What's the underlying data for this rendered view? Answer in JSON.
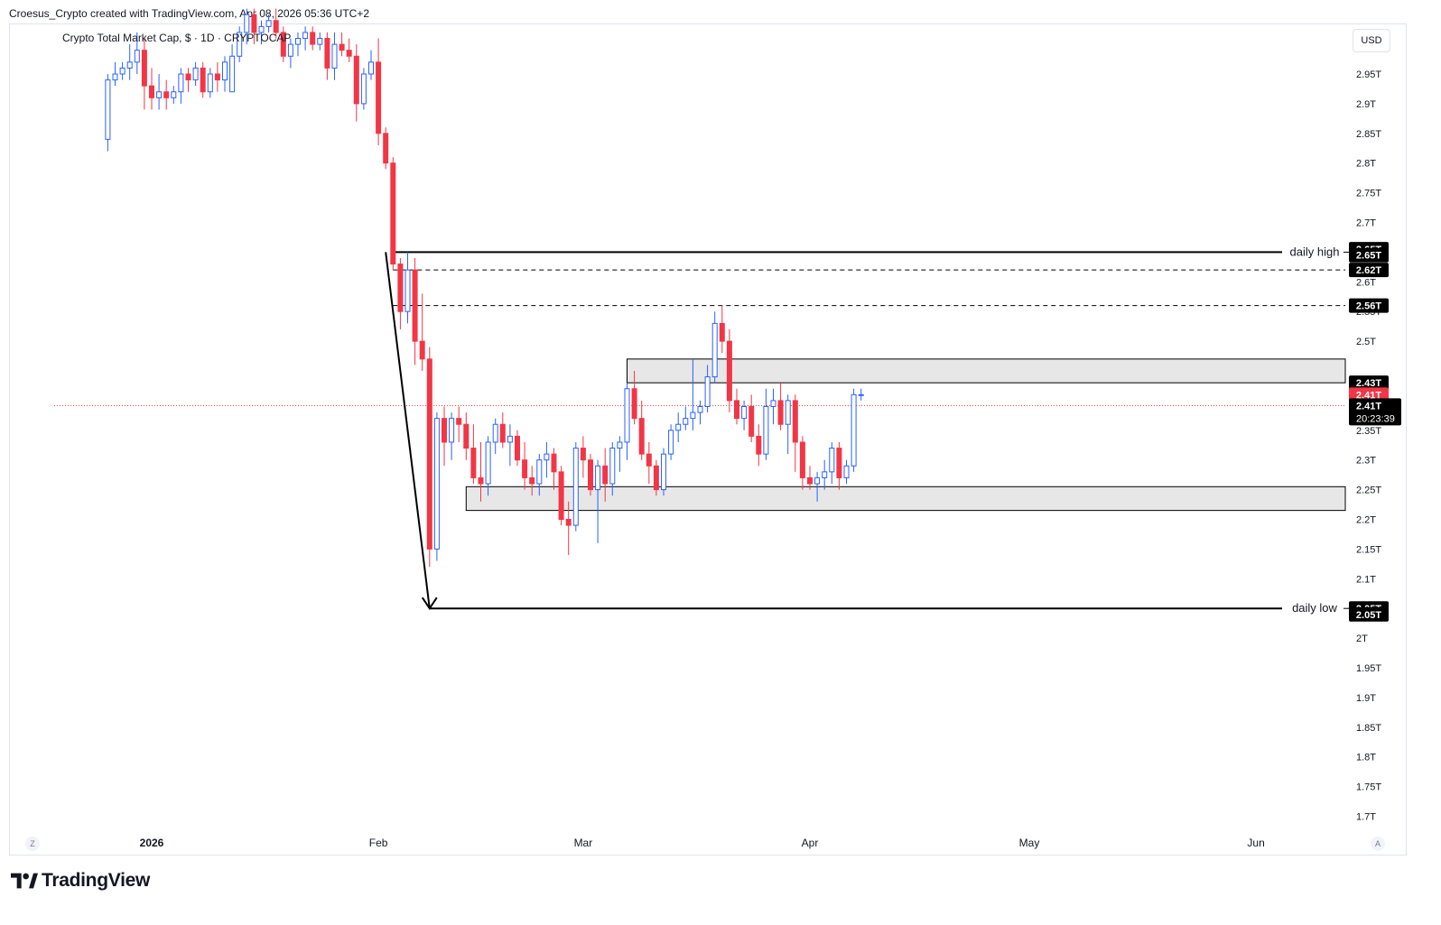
{
  "header": {
    "attribution": "Croesus_Crypto created with TradingView.com, Apr 08, 2026 05:36 UTC+2"
  },
  "symbol": {
    "title": "Crypto Total Market Cap, $ · 1D · CRYPTOCAP"
  },
  "currency": "USD",
  "corner_left": "Z",
  "corner_right": "A",
  "footer": {
    "brand": "TradingView"
  },
  "colors": {
    "up": "#2962ff",
    "down": "#f23645",
    "zone": "#e3e3e3",
    "line": "#000000",
    "price_line": "#f23645"
  },
  "chart_data": {
    "type": "candlestick",
    "y_axis": {
      "ticks": [
        "2.95T",
        "2.9T",
        "2.85T",
        "2.8T",
        "2.75T",
        "2.7T",
        "2.6T",
        "2.55T",
        "2.5T",
        "2.35T",
        "2.3T",
        "2.25T",
        "2.2T",
        "2.15T",
        "2.1T",
        "2T",
        "1.95T",
        "1.9T",
        "1.85T",
        "1.8T",
        "1.75T",
        "1.7T"
      ],
      "tick_values": [
        2.95,
        2.9,
        2.85,
        2.8,
        2.75,
        2.7,
        2.6,
        2.55,
        2.5,
        2.35,
        2.3,
        2.25,
        2.2,
        2.15,
        2.1,
        2.0,
        1.95,
        1.9,
        1.85,
        1.8,
        1.75,
        1.7
      ],
      "range": [
        1.68,
        3.0
      ]
    },
    "x_axis": {
      "labels": [
        "2026",
        "Feb",
        "Mar",
        "Apr",
        "May",
        "Jun"
      ],
      "dates": [
        "2026-01-01",
        "2026-02-01",
        "2026-03-01",
        "2026-04-01",
        "2026-05-01",
        "2026-06-01"
      ]
    },
    "candles": [
      [
        "2025-12-26",
        2.84,
        2.95,
        2.82,
        2.94
      ],
      [
        "2025-12-27",
        2.94,
        2.97,
        2.93,
        2.95
      ],
      [
        "2025-12-28",
        2.95,
        2.97,
        2.94,
        2.96
      ],
      [
        "2025-12-29",
        2.96,
        3.0,
        2.94,
        2.97
      ],
      [
        "2025-12-30",
        2.97,
        3.02,
        2.95,
        2.99
      ],
      [
        "2025-12-31",
        2.99,
        3.01,
        2.89,
        2.93
      ],
      [
        "2026-01-01",
        2.93,
        2.96,
        2.89,
        2.91
      ],
      [
        "2026-01-02",
        2.91,
        2.95,
        2.89,
        2.92
      ],
      [
        "2026-01-03",
        2.92,
        2.94,
        2.89,
        2.91
      ],
      [
        "2026-01-04",
        2.91,
        2.93,
        2.9,
        2.92
      ],
      [
        "2026-01-05",
        2.92,
        2.96,
        2.9,
        2.95
      ],
      [
        "2026-01-06",
        2.95,
        2.96,
        2.92,
        2.94
      ],
      [
        "2026-01-07",
        2.94,
        2.97,
        2.93,
        2.96
      ],
      [
        "2026-01-08",
        2.96,
        2.97,
        2.91,
        2.92
      ],
      [
        "2026-01-09",
        2.92,
        2.96,
        2.91,
        2.95
      ],
      [
        "2026-01-10",
        2.95,
        2.97,
        2.92,
        2.94
      ],
      [
        "2026-01-11",
        2.94,
        2.98,
        2.92,
        2.97
      ],
      [
        "2026-01-12",
        2.92,
        3.0,
        2.92,
        2.98
      ],
      [
        "2026-01-13",
        2.98,
        3.03,
        2.97,
        3.02
      ],
      [
        "2026-01-14",
        3.02,
        3.06,
        3.0,
        3.05
      ],
      [
        "2026-01-15",
        3.05,
        3.06,
        3.0,
        3.02
      ],
      [
        "2026-01-16",
        3.02,
        3.04,
        3.0,
        3.03
      ],
      [
        "2026-01-17",
        3.03,
        3.05,
        3.02,
        3.04
      ],
      [
        "2026-01-18",
        3.04,
        3.06,
        3.01,
        3.02
      ],
      [
        "2026-01-19",
        3.02,
        3.03,
        2.97,
        2.98
      ],
      [
        "2026-01-20",
        2.98,
        3.01,
        2.96,
        3.0
      ],
      [
        "2026-01-21",
        3.0,
        3.02,
        2.98,
        3.01
      ],
      [
        "2026-01-22",
        3.01,
        3.03,
        2.99,
        3.02
      ],
      [
        "2026-01-23",
        3.02,
        3.03,
        2.99,
        3.0
      ],
      [
        "2026-01-24",
        3.0,
        3.02,
        2.99,
        3.01
      ],
      [
        "2026-01-25",
        3.01,
        3.02,
        2.94,
        2.96
      ],
      [
        "2026-01-26",
        2.96,
        3.02,
        2.94,
        3.0
      ],
      [
        "2026-01-27",
        3.0,
        3.02,
        2.98,
        2.99
      ],
      [
        "2026-01-28",
        2.99,
        3.01,
        2.97,
        2.98
      ],
      [
        "2026-01-29",
        2.98,
        3.0,
        2.87,
        2.9
      ],
      [
        "2026-01-30",
        2.9,
        2.96,
        2.89,
        2.95
      ],
      [
        "2026-01-31",
        2.95,
        2.99,
        2.94,
        2.97
      ],
      [
        "2026-02-01",
        2.97,
        3.01,
        2.83,
        2.85
      ],
      [
        "2026-02-02",
        2.85,
        2.86,
        2.79,
        2.8
      ],
      [
        "2026-02-03",
        2.8,
        2.81,
        2.62,
        2.63
      ],
      [
        "2026-02-04",
        2.63,
        2.64,
        2.52,
        2.55
      ],
      [
        "2026-02-05",
        2.55,
        2.65,
        2.53,
        2.62
      ],
      [
        "2026-02-06",
        2.62,
        2.64,
        2.46,
        2.5
      ],
      [
        "2026-02-07",
        2.5,
        2.58,
        2.45,
        2.47
      ],
      [
        "2026-02-08",
        2.47,
        2.49,
        2.12,
        2.15
      ],
      [
        "2026-02-09",
        2.15,
        2.38,
        2.13,
        2.37
      ],
      [
        "2026-02-10",
        2.37,
        2.39,
        2.29,
        2.33
      ],
      [
        "2026-02-11",
        2.33,
        2.38,
        2.3,
        2.37
      ],
      [
        "2026-02-12",
        2.37,
        2.39,
        2.33,
        2.36
      ],
      [
        "2026-02-13",
        2.36,
        2.38,
        2.3,
        2.32
      ],
      [
        "2026-02-14",
        2.32,
        2.36,
        2.26,
        2.27
      ],
      [
        "2026-02-15",
        2.27,
        2.33,
        2.23,
        2.26
      ],
      [
        "2026-02-16",
        2.26,
        2.34,
        2.24,
        2.33
      ],
      [
        "2026-02-17",
        2.33,
        2.37,
        2.31,
        2.36
      ],
      [
        "2026-02-18",
        2.36,
        2.38,
        2.32,
        2.33
      ],
      [
        "2026-02-19",
        2.33,
        2.36,
        2.29,
        2.34
      ],
      [
        "2026-02-20",
        2.34,
        2.35,
        2.29,
        2.3
      ],
      [
        "2026-02-21",
        2.3,
        2.33,
        2.25,
        2.27
      ],
      [
        "2026-02-22",
        2.27,
        2.29,
        2.24,
        2.26
      ],
      [
        "2026-02-23",
        2.26,
        2.31,
        2.24,
        2.3
      ],
      [
        "2026-02-24",
        2.3,
        2.33,
        2.27,
        2.31
      ],
      [
        "2026-02-25",
        2.31,
        2.32,
        2.25,
        2.28
      ],
      [
        "2026-02-26",
        2.28,
        2.29,
        2.19,
        2.2
      ],
      [
        "2026-02-27",
        2.2,
        2.23,
        2.14,
        2.19
      ],
      [
        "2026-02-28",
        2.19,
        2.33,
        2.18,
        2.32
      ],
      [
        "2026-03-01",
        2.32,
        2.34,
        2.27,
        2.3
      ],
      [
        "2026-03-02",
        2.3,
        2.31,
        2.24,
        2.25
      ],
      [
        "2026-03-03",
        2.25,
        2.3,
        2.16,
        2.29
      ],
      [
        "2026-03-04",
        2.29,
        2.32,
        2.23,
        2.26
      ],
      [
        "2026-03-05",
        2.26,
        2.33,
        2.24,
        2.32
      ],
      [
        "2026-03-06",
        2.32,
        2.34,
        2.28,
        2.33
      ],
      [
        "2026-03-07",
        2.33,
        2.43,
        2.3,
        2.42
      ],
      [
        "2026-03-08",
        2.42,
        2.45,
        2.36,
        2.37
      ],
      [
        "2026-03-09",
        2.37,
        2.4,
        2.3,
        2.31
      ],
      [
        "2026-03-10",
        2.31,
        2.33,
        2.26,
        2.29
      ],
      [
        "2026-03-11",
        2.29,
        2.3,
        2.24,
        2.25
      ],
      [
        "2026-03-12",
        2.25,
        2.32,
        2.24,
        2.31
      ],
      [
        "2026-03-13",
        2.31,
        2.36,
        2.3,
        2.35
      ],
      [
        "2026-03-14",
        2.35,
        2.38,
        2.33,
        2.36
      ],
      [
        "2026-03-15",
        2.36,
        2.39,
        2.35,
        2.37
      ],
      [
        "2026-03-16",
        2.37,
        2.47,
        2.35,
        2.38
      ],
      [
        "2026-03-17",
        2.38,
        2.4,
        2.36,
        2.39
      ],
      [
        "2026-03-18",
        2.39,
        2.46,
        2.38,
        2.44
      ],
      [
        "2026-03-19",
        2.44,
        2.55,
        2.43,
        2.53
      ],
      [
        "2026-03-20",
        2.53,
        2.56,
        2.48,
        2.5
      ],
      [
        "2026-03-21",
        2.5,
        2.52,
        2.38,
        2.4
      ],
      [
        "2026-03-22",
        2.4,
        2.42,
        2.36,
        2.37
      ],
      [
        "2026-03-23",
        2.37,
        2.4,
        2.35,
        2.39
      ],
      [
        "2026-03-24",
        2.39,
        2.41,
        2.33,
        2.34
      ],
      [
        "2026-03-25",
        2.34,
        2.36,
        2.29,
        2.31
      ],
      [
        "2026-03-26",
        2.31,
        2.42,
        2.3,
        2.39
      ],
      [
        "2026-03-27",
        2.39,
        2.42,
        2.36,
        2.4
      ],
      [
        "2026-03-28",
        2.4,
        2.43,
        2.35,
        2.36
      ],
      [
        "2026-03-29",
        2.36,
        2.41,
        2.31,
        2.4
      ],
      [
        "2026-03-30",
        2.4,
        2.41,
        2.28,
        2.33
      ],
      [
        "2026-03-31",
        2.33,
        2.34,
        2.25,
        2.27
      ],
      [
        "2026-04-01",
        2.27,
        2.29,
        2.25,
        2.26
      ],
      [
        "2026-04-02",
        2.26,
        2.28,
        2.23,
        2.27
      ],
      [
        "2026-04-03",
        2.27,
        2.3,
        2.25,
        2.28
      ],
      [
        "2026-04-04",
        2.28,
        2.33,
        2.26,
        2.32
      ],
      [
        "2026-04-05",
        2.32,
        2.33,
        2.25,
        2.27
      ],
      [
        "2026-04-06",
        2.27,
        2.3,
        2.26,
        2.29
      ],
      [
        "2026-04-07",
        2.29,
        2.42,
        2.28,
        2.41
      ],
      [
        "2026-04-08",
        2.41,
        2.42,
        2.4,
        2.41
      ]
    ],
    "levels": [
      {
        "value": 2.65,
        "style": "solid",
        "label": "daily high",
        "start": "2026-02-03"
      },
      {
        "value": 2.62,
        "style": "dashed",
        "start": "2026-02-03"
      },
      {
        "value": 2.56,
        "style": "dashed",
        "start": "2026-02-03"
      },
      {
        "value": 2.05,
        "style": "solid",
        "label": "daily low",
        "start": "2026-02-08"
      }
    ],
    "zones": [
      {
        "from": 2.43,
        "to": 2.47,
        "start": "2026-03-07"
      },
      {
        "from": 2.215,
        "to": 2.255,
        "start": "2026-02-13"
      }
    ],
    "arrow": {
      "from": [
        "2026-02-02",
        2.65
      ],
      "to": [
        "2026-02-08",
        2.05
      ]
    },
    "current_price": {
      "value": 2.41,
      "label": "2.41T",
      "countdown": "20:23:39"
    },
    "price_tags": [
      {
        "value": 2.655,
        "label": "2.65T",
        "color": "#000000"
      },
      {
        "value": 2.645,
        "label": "2.65T",
        "color": "#000000"
      },
      {
        "value": 2.62,
        "label": "2.62T",
        "color": "#000000"
      },
      {
        "value": 2.56,
        "label": "2.56T",
        "color": "#000000"
      },
      {
        "value": 2.43,
        "label": "2.43T",
        "color": "#000000"
      },
      {
        "value": 2.41,
        "label": "2.41T",
        "color": "#f23645"
      },
      {
        "value": 2.05,
        "label": "2.05T",
        "color": "#000000"
      },
      {
        "value": 2.04,
        "label": "2.05T",
        "color": "#000000"
      }
    ]
  }
}
